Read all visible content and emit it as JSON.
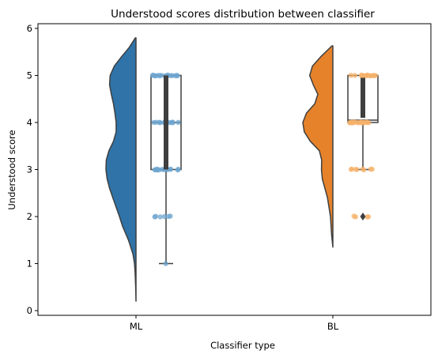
{
  "chart_data": {
    "type": "raincloud",
    "title": "Understood scores distribution between classifier",
    "xlabel": "Classifier type",
    "ylabel": "Understood score",
    "categories": [
      "ML",
      "BL"
    ],
    "ylim": [
      -0.1,
      6.1
    ],
    "yticks": [
      "0",
      "1",
      "2",
      "3",
      "4",
      "5",
      "6"
    ],
    "grid": false,
    "groups": [
      {
        "name": "ML",
        "color": "#2f73a8",
        "point_color": "#6ea6d0",
        "violin": {
          "y": [
            0.2,
            0.5,
            0.8,
            1.0,
            1.2,
            1.5,
            1.8,
            2.0,
            2.2,
            2.4,
            2.6,
            2.8,
            3.0,
            3.2,
            3.4,
            3.6,
            3.8,
            4.0,
            4.2,
            4.4,
            4.6,
            4.8,
            5.0,
            5.2,
            5.4,
            5.6,
            5.8
          ],
          "density": [
            0.0,
            0.01,
            0.03,
            0.05,
            0.1,
            0.25,
            0.45,
            0.55,
            0.66,
            0.77,
            0.88,
            0.96,
            1.0,
            0.99,
            0.9,
            0.75,
            0.66,
            0.66,
            0.7,
            0.75,
            0.82,
            0.88,
            0.86,
            0.72,
            0.48,
            0.22,
            0.02
          ]
        },
        "box": {
          "whisker_low": 1,
          "q1": 3,
          "median": 4,
          "q3": 5,
          "whisker_high": 5,
          "mean_bar": [
            3,
            5
          ]
        },
        "outliers": [],
        "points": [
          {
            "score": 1,
            "n": 1
          },
          {
            "score": 2,
            "n": 6
          },
          {
            "score": 3,
            "n": 16
          },
          {
            "score": 4,
            "n": 14
          },
          {
            "score": 5,
            "n": 16
          }
        ]
      },
      {
        "name": "BL",
        "color": "#e6822a",
        "point_color": "#f6b26b",
        "violin": {
          "y": [
            1.35,
            1.6,
            2.0,
            2.4,
            2.8,
            3.0,
            3.2,
            3.4,
            3.6,
            3.8,
            4.0,
            4.2,
            4.4,
            4.6,
            4.8,
            5.0,
            5.2,
            5.4,
            5.63
          ],
          "density": [
            0.0,
            0.04,
            0.08,
            0.18,
            0.35,
            0.38,
            0.37,
            0.45,
            0.75,
            0.95,
            1.0,
            0.88,
            0.6,
            0.5,
            0.65,
            0.77,
            0.68,
            0.4,
            0.03
          ]
        },
        "box": {
          "whisker_low": 3,
          "q1": 4,
          "median": 4.05,
          "q3": 5,
          "whisker_high": 5,
          "mean_bar": [
            4.1,
            4.95
          ]
        },
        "outliers": [
          2
        ],
        "points": [
          {
            "score": 2,
            "n": 4
          },
          {
            "score": 3,
            "n": 8
          },
          {
            "score": 4,
            "n": 18
          },
          {
            "score": 5,
            "n": 18
          }
        ]
      }
    ]
  }
}
